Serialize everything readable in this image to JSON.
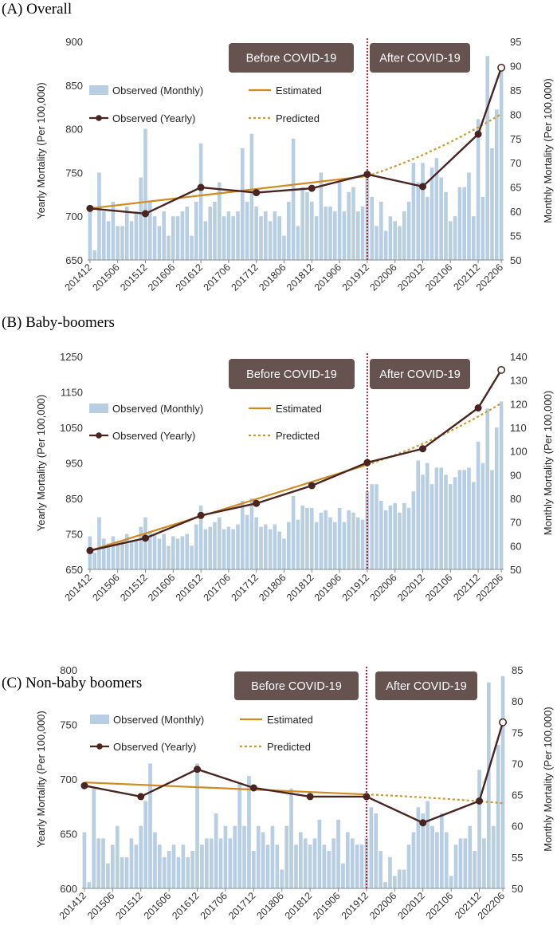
{
  "chart_data": [
    {
      "type": "bar+line",
      "title": "(A) Overall",
      "ylabel_left": "Yearly Mortality (Per 100,000)",
      "ylabel_right": "Monthly Mortality (Per 100,000)",
      "ylim_left": [
        650,
        900
      ],
      "yticks_left": [
        650,
        700,
        750,
        800,
        850,
        900
      ],
      "ylim_right": [
        50,
        95
      ],
      "yticks_right": [
        50,
        55,
        60,
        65,
        70,
        75,
        80,
        85,
        90,
        95
      ],
      "x_tick_labels": [
        "201412",
        "201506",
        "201512",
        "201606",
        "201612",
        "201706",
        "201712",
        "201806",
        "201812",
        "201906",
        "201912",
        "202006",
        "202012",
        "202106",
        "202112",
        "202206"
      ],
      "period_labels": [
        "Before COVID-19",
        "After COVID-19"
      ],
      "divider_at": "201912",
      "legend": [
        "Observed (Monthly)",
        "Estimated",
        "Observed (Yearly)",
        "Predicted"
      ],
      "monthly": [
        61,
        52,
        68,
        60,
        58,
        62,
        57,
        57,
        61,
        58,
        60,
        67,
        77,
        62,
        59,
        57,
        60,
        55,
        59,
        59,
        60,
        61,
        55,
        62,
        74,
        58,
        61,
        62,
        66,
        59,
        60,
        59,
        60,
        73,
        62,
        76,
        61,
        59,
        60,
        58,
        60,
        59,
        55,
        62,
        75,
        57,
        65,
        64,
        62,
        59,
        68,
        61,
        61,
        60,
        66,
        60,
        64,
        65,
        60,
        61,
        68,
        63,
        57,
        62,
        56,
        59,
        58,
        57,
        60,
        62,
        70,
        66,
        70,
        63,
        69,
        71,
        67,
        64,
        58,
        59,
        65,
        65,
        68,
        59,
        79,
        63,
        92,
        73,
        81,
        90
      ],
      "yearly": [
        {
          "x": "201412",
          "y": 709
        },
        {
          "x": "201512",
          "y": 703
        },
        {
          "x": "201612",
          "y": 733
        },
        {
          "x": "201712",
          "y": 727
        },
        {
          "x": "201812",
          "y": 732
        },
        {
          "x": "201912",
          "y": 748
        },
        {
          "x": "202012",
          "y": 734
        },
        {
          "x": "202112",
          "y": 794
        },
        {
          "x": "202206",
          "y": 870
        }
      ],
      "estimated": [
        {
          "x": "201412",
          "y": 709
        },
        {
          "x": "201912",
          "y": 746
        }
      ],
      "predicted": [
        {
          "x": "201912",
          "y": 746
        },
        {
          "x": "202206",
          "y": 817
        }
      ]
    },
    {
      "type": "bar+line",
      "title": "(B) Baby-boomers",
      "ylabel_left": "Yearly Mortality (Per 100,000)",
      "ylabel_right": "Monthly Mortality (Per 100,000)",
      "ylim_left": [
        650,
        1250
      ],
      "yticks_left": [
        650,
        750,
        850,
        950,
        1050,
        1150,
        1250
      ],
      "ylim_right": [
        50,
        140
      ],
      "yticks_right": [
        50,
        60,
        70,
        80,
        90,
        100,
        110,
        120,
        130,
        140
      ],
      "x_tick_labels": [
        "201412",
        "201506",
        "201512",
        "201606",
        "201612",
        "201706",
        "201712",
        "201806",
        "201812",
        "201906",
        "201912",
        "202006",
        "202012",
        "202106",
        "202112",
        "202206"
      ],
      "period_labels": [
        "Before COVID-19",
        "After COVID-19"
      ],
      "divider_at": "201912",
      "legend": [
        "Observed (Monthly)",
        "Estimated",
        "Observed (Yearly)",
        "Predicted"
      ],
      "monthly": [
        64,
        57,
        72,
        63,
        61,
        64,
        62,
        62,
        65,
        62,
        62,
        68,
        72,
        66,
        65,
        63,
        65,
        60,
        64,
        63,
        64,
        65,
        60,
        69,
        77,
        67,
        68,
        70,
        72,
        67,
        68,
        67,
        69,
        79,
        73,
        80,
        72,
        68,
        69,
        67,
        69,
        66,
        63,
        70,
        81,
        71,
        77,
        76,
        76,
        70,
        74,
        75,
        72,
        70,
        76,
        70,
        75,
        74,
        72,
        71,
        83,
        86,
        86,
        79,
        75,
        77,
        78,
        74,
        78,
        76,
        83,
        96,
        90,
        95,
        86,
        93,
        93,
        90,
        86,
        89,
        92,
        92,
        93,
        87,
        104,
        95,
        118,
        92,
        110,
        121
      ],
      "yearly": [
        {
          "x": "201412",
          "y": 703
        },
        {
          "x": "201512",
          "y": 738
        },
        {
          "x": "201612",
          "y": 802
        },
        {
          "x": "201712",
          "y": 836
        },
        {
          "x": "201812",
          "y": 886
        },
        {
          "x": "201912",
          "y": 951
        },
        {
          "x": "202012",
          "y": 990
        },
        {
          "x": "202112",
          "y": 1105
        },
        {
          "x": "202206",
          "y": 1212
        }
      ],
      "estimated": [
        {
          "x": "201412",
          "y": 703
        },
        {
          "x": "201912",
          "y": 945
        }
      ],
      "predicted": [
        {
          "x": "201912",
          "y": 945
        },
        {
          "x": "202206",
          "y": 1118
        }
      ]
    },
    {
      "type": "bar+line",
      "title": "(C) Non-baby boomers",
      "ylabel_left": "Yearly Mortality (Per 100,000)",
      "ylabel_right": "Monthly Mortality (Per 100,000)",
      "ylim_left": [
        600,
        800
      ],
      "yticks_left": [
        600,
        650,
        700,
        750,
        800
      ],
      "ylim_right": [
        50,
        85
      ],
      "yticks_right": [
        50,
        55,
        60,
        65,
        70,
        75,
        80,
        85
      ],
      "x_tick_labels": [
        "201412",
        "201506",
        "201512",
        "201606",
        "201612",
        "201706",
        "201712",
        "201806",
        "201812",
        "201906",
        "201912",
        "202006",
        "202012",
        "202106",
        "202112",
        "202206"
      ],
      "period_labels": [
        "Before COVID-19",
        "After COVID-19"
      ],
      "divider_at": "201912",
      "legend": [
        "Observed (Monthly)",
        "Estimated",
        "Observed (Yearly)",
        "Predicted"
      ],
      "monthly": [
        59,
        51,
        66,
        58,
        58,
        54,
        57,
        60,
        55,
        55,
        58,
        57,
        60,
        64,
        70,
        59,
        57,
        55,
        56,
        57,
        55,
        57,
        55,
        56,
        70,
        57,
        58,
        58,
        62,
        58,
        60,
        58,
        60,
        67,
        60,
        68,
        56,
        60,
        59,
        57,
        60,
        57,
        53,
        60,
        66,
        57,
        59,
        58,
        57,
        58,
        61,
        57,
        56,
        58,
        61,
        54,
        59,
        58,
        57,
        57,
        58,
        63,
        62,
        56,
        51,
        55,
        52,
        53,
        53,
        57,
        59,
        63,
        62,
        64,
        60,
        59,
        62,
        59,
        52,
        57,
        58,
        58,
        60,
        56,
        69,
        58,
        83,
        60,
        73,
        84
      ],
      "yearly": [
        {
          "x": "201412",
          "y": 694
        },
        {
          "x": "201512",
          "y": 684
        },
        {
          "x": "201612",
          "y": 709
        },
        {
          "x": "201712",
          "y": 692
        },
        {
          "x": "201812",
          "y": 684
        },
        {
          "x": "201912",
          "y": 684
        },
        {
          "x": "202012",
          "y": 660
        },
        {
          "x": "202112",
          "y": 680
        },
        {
          "x": "202206",
          "y": 752
        }
      ],
      "estimated": [
        {
          "x": "201412",
          "y": 697
        },
        {
          "x": "201912",
          "y": 686
        }
      ],
      "predicted": [
        {
          "x": "201912",
          "y": 686
        },
        {
          "x": "202206",
          "y": 678
        }
      ]
    }
  ]
}
